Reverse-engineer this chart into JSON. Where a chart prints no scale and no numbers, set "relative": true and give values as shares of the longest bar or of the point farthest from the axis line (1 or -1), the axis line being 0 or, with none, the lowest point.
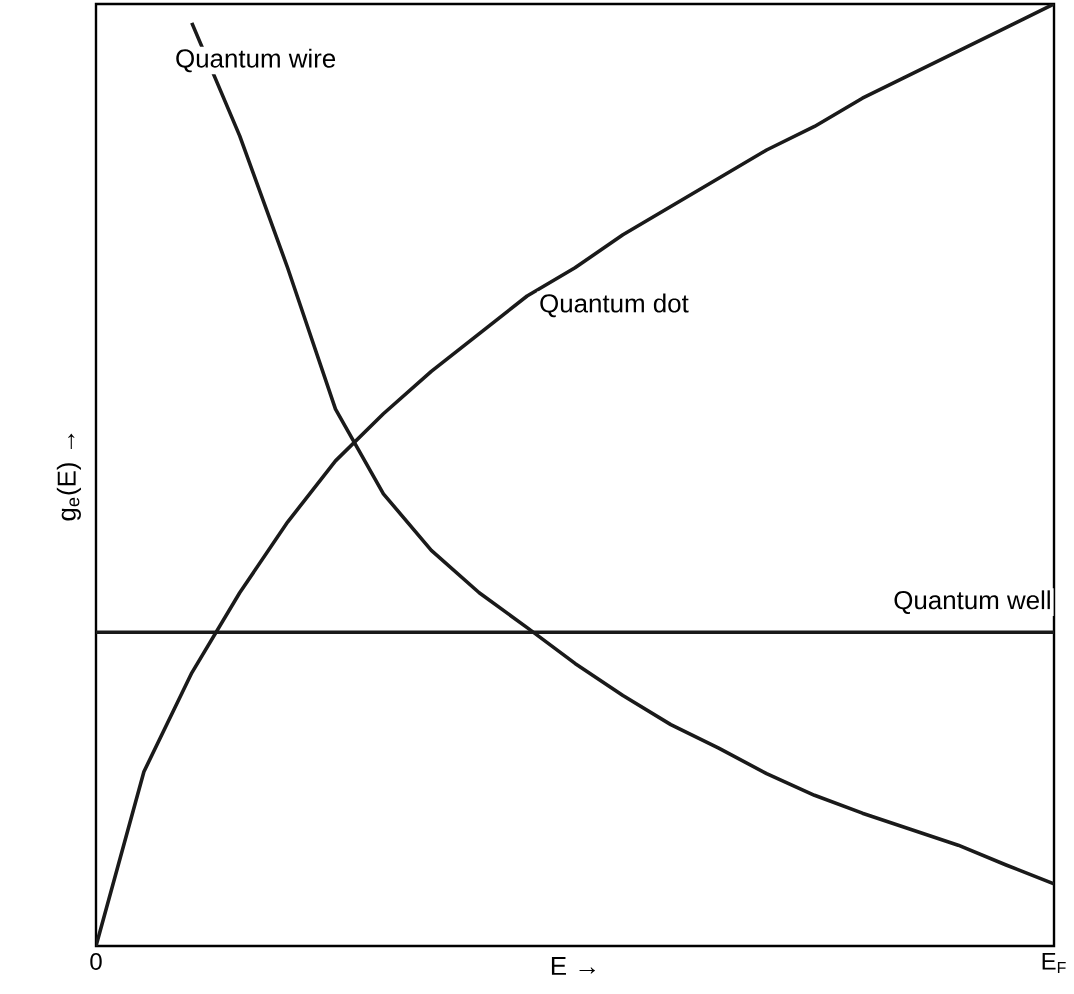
{
  "chart_data": {
    "type": "line",
    "relative": true,
    "xlabel": "E  →",
    "ylabel": "g$_{e}$(E)  →",
    "categories": [
      "0",
      null,
      null,
      null,
      null,
      null,
      null,
      null,
      null,
      null,
      null,
      null,
      null,
      null,
      null,
      null,
      null,
      null,
      null,
      null,
      "E$_{F}$"
    ],
    "tick_labels": "x",
    "marker": "none",
    "line_style": "solid",
    "series": [
      {
        "name": "Quantum wire",
        "color": "#1a1a1a",
        "values": [
          null,
          null,
          0.98,
          0.86,
          0.72,
          0.57,
          0.48,
          0.42,
          0.375,
          0.338,
          0.3,
          0.266,
          0.235,
          0.21,
          0.183,
          0.16,
          0.141,
          0.124,
          0.107,
          0.086,
          0.066
        ]
      },
      {
        "name": "Quantum dot",
        "color": "#1a1a1a",
        "values": [
          0,
          0.185,
          0.29,
          0.375,
          0.45,
          0.515,
          0.565,
          0.61,
          0.65,
          0.69,
          0.72,
          0.755,
          0.785,
          0.815,
          0.845,
          0.87,
          0.9,
          0.925,
          0.95,
          0.975,
          1.0
        ]
      },
      {
        "name": "Quantum well",
        "color": "#1a1a1a",
        "values": [
          0.333,
          0.333,
          0.333,
          0.333,
          0.333,
          0.333,
          0.333,
          0.333,
          0.333,
          0.333,
          0.333,
          0.333,
          0.333,
          0.333,
          0.333,
          0.333,
          0.333,
          0.333,
          0.333,
          0.333,
          0.333
        ]
      }
    ]
  }
}
